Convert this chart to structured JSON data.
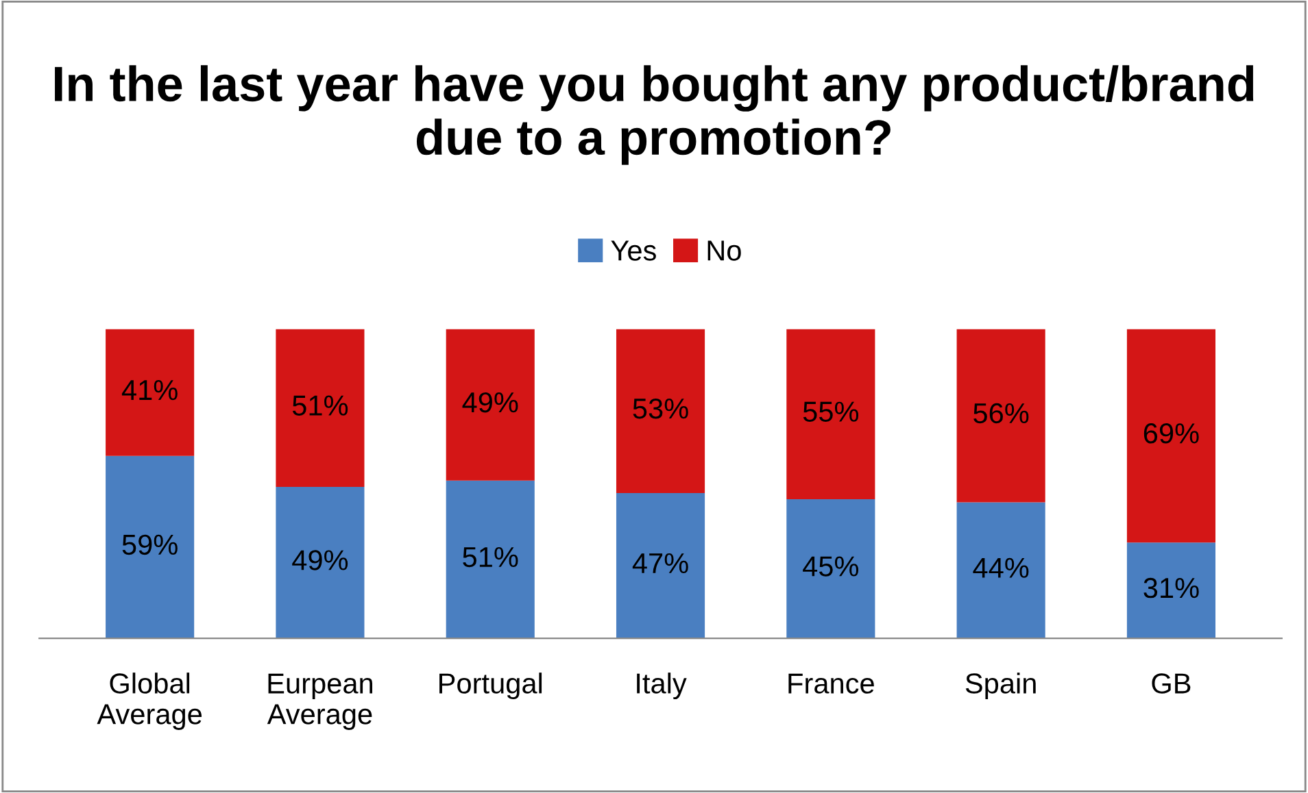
{
  "chart_data": {
    "type": "bar",
    "title": "In the last year have you bought any product/brand due to a promotion?",
    "categories": [
      "Global\nAverage",
      "Eurpean\nAverage",
      "Portugal",
      "Italy",
      "France",
      "Spain",
      "GB"
    ],
    "series": [
      {
        "name": "Yes",
        "color": "#4a7fc1",
        "values": [
          59,
          49,
          51,
          47,
          45,
          44,
          31
        ],
        "value_labels": [
          "59%",
          "49%",
          "51%",
          "47%",
          "45%",
          "44%",
          "31%"
        ]
      },
      {
        "name": "No",
        "color": "#d41616",
        "values": [
          41,
          51,
          49,
          53,
          55,
          56,
          69
        ],
        "value_labels": [
          "41%",
          "51%",
          "49%",
          "53%",
          "55%",
          "56%",
          "69%"
        ]
      }
    ],
    "stacked": true,
    "legend": "top",
    "grid": false
  }
}
